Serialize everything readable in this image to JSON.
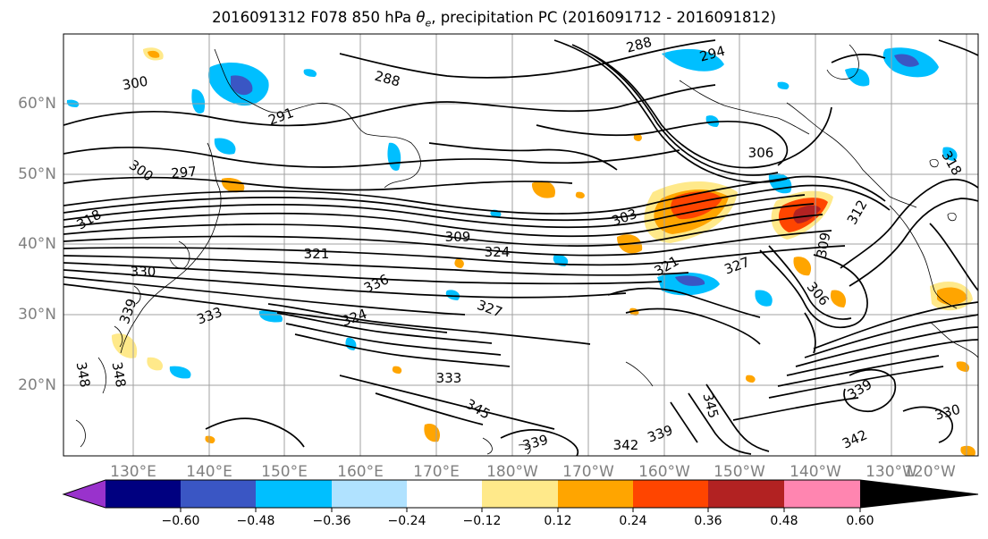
{
  "title": {
    "prefix": "2016091312 F078 850 hPa ",
    "symbol": "θ",
    "subscript": "e",
    "suffix": ", precipitation PC (2016091712 - 2016091812)"
  },
  "axes": {
    "lat_labels": [
      "60°N",
      "50°N",
      "40°N",
      "30°N",
      "20°N"
    ],
    "lon_labels": [
      "130°E",
      "140°E",
      "150°E",
      "160°E",
      "170°E",
      "180°W",
      "170°W",
      "160°W",
      "150°W",
      "140°W",
      "130°W",
      "120°W"
    ]
  },
  "contour_labels": [
    "288",
    "294",
    "300",
    "288",
    "291",
    "297",
    "300",
    "306",
    "318",
    "309",
    "303",
    "312",
    "321",
    "324",
    "330",
    "336",
    "327",
    "321",
    "309",
    "339",
    "333",
    "306",
    "324",
    "327",
    "333",
    "345",
    "348",
    "348",
    "342",
    "339",
    "339",
    "339",
    "330",
    "342",
    "345",
    "318"
  ],
  "colorbar": {
    "ticks": [
      "−0.60",
      "−0.48",
      "−0.36",
      "−0.24",
      "−0.12",
      "0.12",
      "0.24",
      "0.36",
      "0.48",
      "0.60"
    ],
    "colors": [
      "#9932cc",
      "#000080",
      "#3a56c4",
      "#00bfff",
      "#b0e2ff",
      "#ffffff",
      "#ffe98a",
      "#ffa500",
      "#ff4500",
      "#b22222",
      "#ff85b0"
    ]
  }
}
